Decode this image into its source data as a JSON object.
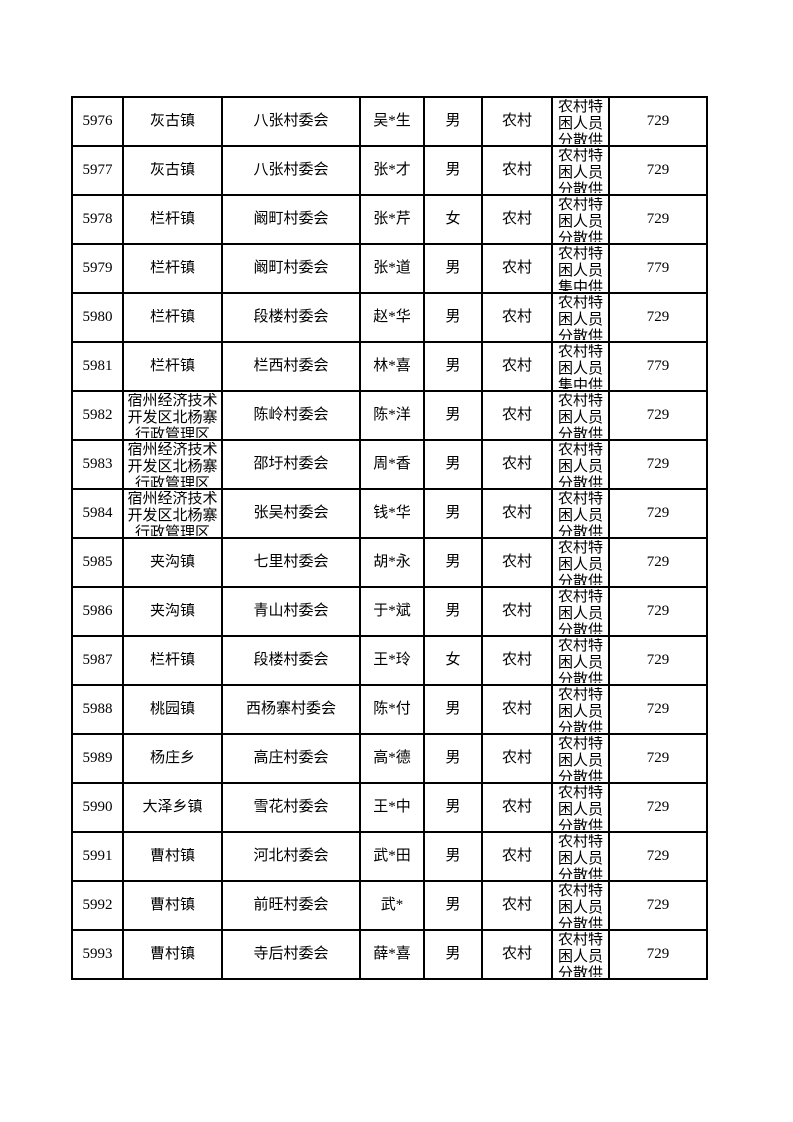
{
  "table": {
    "rows": [
      {
        "seq": "5976",
        "town": "灰古镇",
        "village": "八张村委会",
        "person": "吴*生",
        "gender": "男",
        "area": "农村",
        "category": "农村特困人员分散供",
        "amount": "729"
      },
      {
        "seq": "5977",
        "town": "灰古镇",
        "village": "八张村委会",
        "person": "张*才",
        "gender": "男",
        "area": "农村",
        "category": "农村特困人员分散供",
        "amount": "729"
      },
      {
        "seq": "5978",
        "town": "栏杆镇",
        "village": "阚町村委会",
        "person": "张*芹",
        "gender": "女",
        "area": "农村",
        "category": "农村特困人员分散供",
        "amount": "729"
      },
      {
        "seq": "5979",
        "town": "栏杆镇",
        "village": "阚町村委会",
        "person": "张*道",
        "gender": "男",
        "area": "农村",
        "category": "农村特困人员集中供",
        "amount": "779"
      },
      {
        "seq": "5980",
        "town": "栏杆镇",
        "village": "段楼村委会",
        "person": "赵*华",
        "gender": "男",
        "area": "农村",
        "category": "农村特困人员分散供",
        "amount": "729"
      },
      {
        "seq": "5981",
        "town": "栏杆镇",
        "village": "栏西村委会",
        "person": "林*喜",
        "gender": "男",
        "area": "农村",
        "category": "农村特困人员集中供",
        "amount": "779"
      },
      {
        "seq": "5982",
        "town": "宿州经济技术开发区北杨寨行政管理区",
        "village": "陈岭村委会",
        "person": "陈*洋",
        "gender": "男",
        "area": "农村",
        "category": "农村特困人员分散供",
        "amount": "729"
      },
      {
        "seq": "5983",
        "town": "宿州经济技术开发区北杨寨行政管理区",
        "village": "邵圩村委会",
        "person": "周*香",
        "gender": "男",
        "area": "农村",
        "category": "农村特困人员分散供",
        "amount": "729"
      },
      {
        "seq": "5984",
        "town": "宿州经济技术开发区北杨寨行政管理区",
        "village": "张吴村委会",
        "person": "钱*华",
        "gender": "男",
        "area": "农村",
        "category": "农村特困人员分散供",
        "amount": "729"
      },
      {
        "seq": "5985",
        "town": "夹沟镇",
        "village": "七里村委会",
        "person": "胡*永",
        "gender": "男",
        "area": "农村",
        "category": "农村特困人员分散供",
        "amount": "729"
      },
      {
        "seq": "5986",
        "town": "夹沟镇",
        "village": "青山村委会",
        "person": "于*斌",
        "gender": "男",
        "area": "农村",
        "category": "农村特困人员分散供",
        "amount": "729"
      },
      {
        "seq": "5987",
        "town": "栏杆镇",
        "village": "段楼村委会",
        "person": "王*玲",
        "gender": "女",
        "area": "农村",
        "category": "农村特困人员分散供",
        "amount": "729"
      },
      {
        "seq": "5988",
        "town": "桃园镇",
        "village": "西杨寨村委会",
        "person": "陈*付",
        "gender": "男",
        "area": "农村",
        "category": "农村特困人员分散供",
        "amount": "729"
      },
      {
        "seq": "5989",
        "town": "杨庄乡",
        "village": "高庄村委会",
        "person": "高*德",
        "gender": "男",
        "area": "农村",
        "category": "农村特困人员分散供",
        "amount": "729"
      },
      {
        "seq": "5990",
        "town": "大泽乡镇",
        "village": "雪花村委会",
        "person": "王*中",
        "gender": "男",
        "area": "农村",
        "category": "农村特困人员分散供",
        "amount": "729"
      },
      {
        "seq": "5991",
        "town": "曹村镇",
        "village": "河北村委会",
        "person": "武*田",
        "gender": "男",
        "area": "农村",
        "category": "农村特困人员分散供",
        "amount": "729"
      },
      {
        "seq": "5992",
        "town": "曹村镇",
        "village": "前旺村委会",
        "person": "武*",
        "gender": "男",
        "area": "农村",
        "category": "农村特困人员分散供",
        "amount": "729"
      },
      {
        "seq": "5993",
        "town": "曹村镇",
        "village": "寺后村委会",
        "person": "薛*喜",
        "gender": "男",
        "area": "农村",
        "category": "农村特困人员分散供",
        "amount": "729"
      }
    ],
    "border_color": "#000000",
    "text_color": "#000000"
  }
}
